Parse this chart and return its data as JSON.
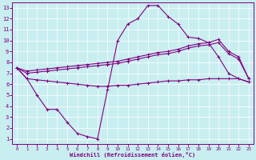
{
  "xlabel": "Windchill (Refroidissement éolien,°C)",
  "background_color": "#c8eef0",
  "line_color": "#800080",
  "xlim": [
    -0.5,
    23.5
  ],
  "ylim": [
    0.5,
    13.5
  ],
  "xticks": [
    0,
    1,
    2,
    3,
    4,
    5,
    6,
    7,
    8,
    9,
    10,
    11,
    12,
    13,
    14,
    15,
    16,
    17,
    18,
    19,
    20,
    21,
    22,
    23
  ],
  "yticks": [
    1,
    2,
    3,
    4,
    5,
    6,
    7,
    8,
    9,
    10,
    11,
    12,
    13
  ],
  "line1_x": [
    0,
    1,
    2,
    3,
    4,
    5,
    6,
    7,
    8,
    9,
    10,
    11,
    12,
    13,
    14,
    15,
    16,
    17,
    18,
    19,
    20,
    21,
    22,
    23
  ],
  "line1_y": [
    7.5,
    6.5,
    5.0,
    3.7,
    3.7,
    2.5,
    1.5,
    1.2,
    1.0,
    5.5,
    10.0,
    11.5,
    12.0,
    13.2,
    13.2,
    12.2,
    11.5,
    10.3,
    10.2,
    9.8,
    8.5,
    7.0,
    6.5,
    6.2
  ],
  "line2_x": [
    0,
    1,
    2,
    3,
    4,
    5,
    6,
    7,
    8,
    9,
    10,
    11,
    12,
    13,
    14,
    15,
    16,
    17,
    18,
    19,
    20,
    21,
    22,
    23
  ],
  "line2_y": [
    7.5,
    7.2,
    7.3,
    7.4,
    7.5,
    7.6,
    7.7,
    7.8,
    7.9,
    8.0,
    8.1,
    8.3,
    8.5,
    8.7,
    8.9,
    9.0,
    9.2,
    9.5,
    9.7,
    9.8,
    10.1,
    9.0,
    8.5,
    6.5
  ],
  "line3_x": [
    0,
    1,
    2,
    3,
    4,
    5,
    6,
    7,
    8,
    9,
    10,
    11,
    12,
    13,
    14,
    15,
    16,
    17,
    18,
    19,
    20,
    21,
    22,
    23
  ],
  "line3_y": [
    7.5,
    7.0,
    7.1,
    7.2,
    7.3,
    7.4,
    7.5,
    7.6,
    7.7,
    7.8,
    7.9,
    8.1,
    8.3,
    8.5,
    8.7,
    8.8,
    9.0,
    9.3,
    9.5,
    9.6,
    9.8,
    8.8,
    8.3,
    6.5
  ],
  "line4_x": [
    0,
    1,
    2,
    3,
    4,
    5,
    6,
    7,
    8,
    9,
    10,
    11,
    12,
    13,
    14,
    15,
    16,
    17,
    18,
    19,
    20,
    21,
    22,
    23
  ],
  "line4_y": [
    7.5,
    6.5,
    6.4,
    6.3,
    6.2,
    6.1,
    6.0,
    5.9,
    5.8,
    5.8,
    5.9,
    5.9,
    6.0,
    6.1,
    6.2,
    6.3,
    6.3,
    6.4,
    6.4,
    6.5,
    6.5,
    6.5,
    6.5,
    6.2
  ],
  "marker": "+",
  "markersize": 3,
  "linewidth": 0.8
}
